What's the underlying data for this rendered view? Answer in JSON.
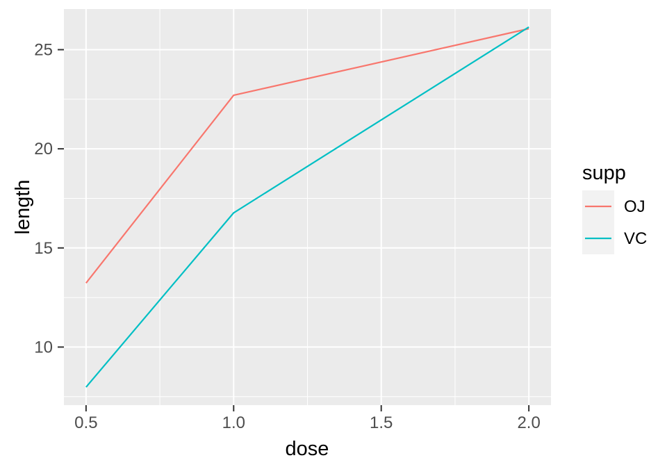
{
  "chart_data": {
    "type": "line",
    "title": "",
    "xlabel": "dose",
    "ylabel": "length",
    "x": [
      0.5,
      1.0,
      2.0
    ],
    "series": [
      {
        "name": "OJ",
        "color": "#F8766D",
        "values": [
          13.23,
          22.7,
          26.06
        ]
      },
      {
        "name": "VC",
        "color": "#00BFC4",
        "values": [
          7.98,
          16.77,
          26.14
        ]
      }
    ],
    "xlim": [
      0.425,
      2.075
    ],
    "ylim": [
      7.07,
      27.05
    ],
    "x_ticks": [
      0.5,
      1.0,
      1.5,
      2.0
    ],
    "x_tick_labels": [
      "0.5",
      "1.0",
      "1.5",
      "2.0"
    ],
    "y_ticks": [
      10,
      15,
      20,
      25
    ],
    "y_tick_labels": [
      "10",
      "15",
      "20",
      "25"
    ],
    "x_minor_ticks": [
      0.75,
      1.25,
      1.75
    ],
    "y_minor_ticks": [
      7.5,
      12.5,
      17.5,
      22.5
    ],
    "grid": true,
    "legend": {
      "title": "supp",
      "position": "right",
      "entries": [
        {
          "label": "OJ",
          "color": "#F8766D"
        },
        {
          "label": "VC",
          "color": "#00BFC4"
        }
      ]
    },
    "theme": {
      "background": "#FFFFFF",
      "panel_bg": "#EBEBEB",
      "grid_color": "#FFFFFF",
      "tick_color": "#333333",
      "tick_label_color": "#4D4D4D",
      "text_color": "#000000",
      "legend_key_bg": "#F2F2F2"
    }
  }
}
